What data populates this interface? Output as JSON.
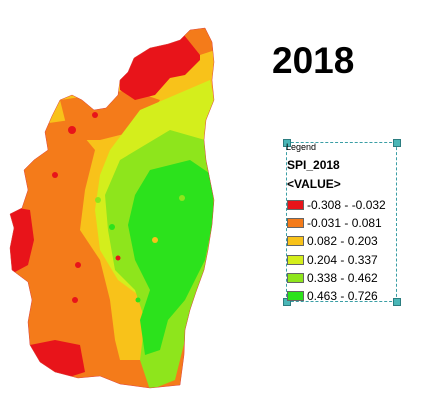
{
  "title": "2018",
  "legend": {
    "header": "Legend",
    "field": "SPI_2018",
    "value_tag": "<VALUE>",
    "classes": [
      {
        "label": "-0.308 - -0.032",
        "color": "#e8141a"
      },
      {
        "label": "-0.031 - 0.081",
        "color": "#f47b1a"
      },
      {
        "label": "0.082 - 0.203",
        "color": "#f8c21a"
      },
      {
        "label": "0.204 - 0.337",
        "color": "#d4ee1c"
      },
      {
        "label": "0.338 - 0.462",
        "color": "#8ee51c"
      },
      {
        "label": "0.463 - 0.726",
        "color": "#2ce21c"
      }
    ]
  }
}
